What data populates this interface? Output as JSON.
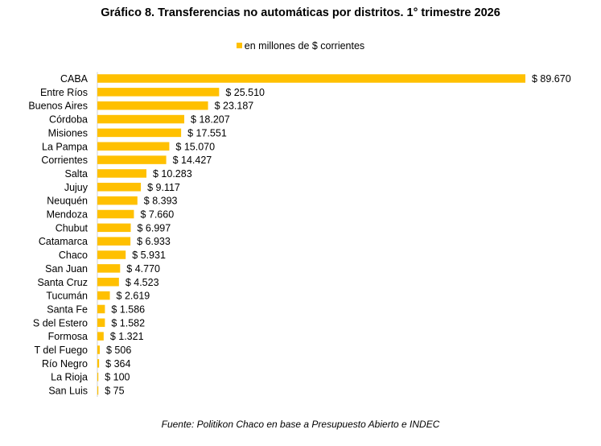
{
  "chart_data": {
    "type": "bar",
    "orientation": "horizontal",
    "title": "Gráfico 8. Transferencias no automáticas por distritos. 1° trimestre 2026",
    "legend": {
      "label": "en millones de $ corrientes",
      "position": "top"
    },
    "categories": [
      "CABA",
      "Entre Ríos",
      "Buenos Aires",
      "Córdoba",
      "Misiones",
      "La Pampa",
      "Corrientes",
      "Salta",
      "Jujuy",
      "Neuquén",
      "Mendoza",
      "Chubut",
      "Catamarca",
      "Chaco",
      "San Juan",
      "Santa Cruz",
      "Tucumán",
      "Santa Fe",
      "S del Estero",
      "Formosa",
      "T del Fuego",
      "Río Negro",
      "La Rioja",
      "San Luis"
    ],
    "series": [
      {
        "name": "en millones de $ corrientes",
        "values": [
          89670,
          25510,
          23187,
          18207,
          17551,
          15070,
          14427,
          10283,
          9117,
          8393,
          7660,
          6997,
          6933,
          5931,
          4770,
          4523,
          2619,
          1586,
          1582,
          1321,
          506,
          364,
          100,
          75
        ]
      }
    ],
    "value_labels": [
      "$ 89.670",
      "$ 25.510",
      "$ 23.187",
      "$ 18.207",
      "$ 17.551",
      "$ 15.070",
      "$ 14.427",
      "$ 10.283",
      "$ 9.117",
      "$ 8.393",
      "$ 7.660",
      "$ 6.997",
      "$ 6.933",
      "$ 5.931",
      "$ 4.770",
      "$ 4.523",
      "$ 2.619",
      "$ 1.586",
      "$ 1.582",
      "$ 1.321",
      "$ 506",
      "$ 364",
      "$ 100",
      "$ 75"
    ],
    "xlim": [
      0,
      89670
    ],
    "grid": false,
    "bar_color": "#FFC000"
  },
  "source": "Fuente: Politikon Chaco en base a Presupuesto Abierto e INDEC"
}
